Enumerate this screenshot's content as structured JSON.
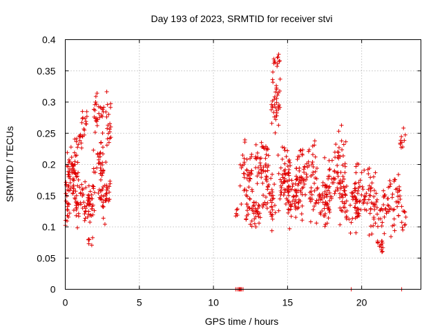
{
  "chart_data": {
    "type": "scatter",
    "title": "Day 193 of 2023, SRMTID for receiver stvi",
    "xlabel": "GPS time / hours",
    "ylabel": "SRMTID / TECUs",
    "xlim": [
      0,
      24
    ],
    "ylim": [
      0,
      0.4
    ],
    "grid": true,
    "marker": "+",
    "color": "#e00000",
    "x_ticks": [
      0,
      5,
      10,
      15,
      20
    ],
    "x_tick_labels": [
      "0",
      "5",
      "10",
      "15",
      "20"
    ],
    "y_ticks": [
      0,
      0.05,
      0.1,
      0.15,
      0.2,
      0.25,
      0.3,
      0.35,
      0.4
    ],
    "y_tick_labels": [
      "0",
      "0.05",
      "0.1",
      "0.15",
      "0.2",
      "0.25",
      "0.3",
      "0.35",
      "0.4"
    ],
    "series": [
      {
        "name": "stvi",
        "clusters": [
          {
            "x_range": [
              0.0,
              0.3
            ],
            "y_center": 0.14,
            "y_spread": 0.03,
            "count": 22
          },
          {
            "x_range": [
              0.1,
              0.7
            ],
            "y_center": 0.195,
            "y_spread": 0.025,
            "count": 40
          },
          {
            "x_range": [
              0.5,
              1.2
            ],
            "y_center": 0.15,
            "y_spread": 0.04,
            "count": 45
          },
          {
            "x_range": [
              0.6,
              1.3
            ],
            "y_center": 0.24,
            "y_spread": 0.025,
            "count": 18
          },
          {
            "x_range": [
              1.2,
              2.0
            ],
            "y_center": 0.14,
            "y_spread": 0.035,
            "count": 45
          },
          {
            "x_range": [
              1.1,
              1.5
            ],
            "y_center": 0.28,
            "y_spread": 0.025,
            "count": 10
          },
          {
            "x_range": [
              1.5,
              1.9
            ],
            "y_center": 0.08,
            "y_spread": 0.015,
            "count": 6
          },
          {
            "x_range": [
              1.9,
              2.6
            ],
            "y_center": 0.285,
            "y_spread": 0.025,
            "count": 25
          },
          {
            "x_range": [
              1.9,
              2.6
            ],
            "y_center": 0.2,
            "y_spread": 0.04,
            "count": 35
          },
          {
            "x_range": [
              2.3,
              2.8
            ],
            "y_center": 0.15,
            "y_spread": 0.035,
            "count": 25
          },
          {
            "x_range": [
              2.7,
              3.1
            ],
            "y_center": 0.26,
            "y_spread": 0.04,
            "count": 20
          },
          {
            "x_range": [
              2.7,
              3.1
            ],
            "y_center": 0.16,
            "y_spread": 0.02,
            "count": 12
          },
          {
            "x_range": [
              11.5,
              11.9
            ],
            "y_center": 0.13,
            "y_spread": 0.012,
            "count": 6
          },
          {
            "x_range": [
              11.8,
              12.6
            ],
            "y_center": 0.19,
            "y_spread": 0.03,
            "count": 35
          },
          {
            "x_range": [
              12.2,
              13.2
            ],
            "y_center": 0.125,
            "y_spread": 0.03,
            "count": 45
          },
          {
            "x_range": [
              12.8,
              13.8
            ],
            "y_center": 0.205,
            "y_spread": 0.03,
            "count": 45
          },
          {
            "x_range": [
              13.3,
              14.2
            ],
            "y_center": 0.15,
            "y_spread": 0.04,
            "count": 40
          },
          {
            "x_range": [
              13.9,
              14.5
            ],
            "y_center": 0.3,
            "y_spread": 0.04,
            "count": 35
          },
          {
            "x_range": [
              14.0,
              14.5
            ],
            "y_center": 0.365,
            "y_spread": 0.015,
            "count": 12
          },
          {
            "x_range": [
              14.3,
              15.2
            ],
            "y_center": 0.18,
            "y_spread": 0.04,
            "count": 55
          },
          {
            "x_range": [
              15.0,
              16.0
            ],
            "y_center": 0.15,
            "y_spread": 0.035,
            "count": 60
          },
          {
            "x_range": [
              15.5,
              17.0
            ],
            "y_center": 0.19,
            "y_spread": 0.04,
            "count": 55
          },
          {
            "x_range": [
              16.5,
              18.0
            ],
            "y_center": 0.14,
            "y_spread": 0.03,
            "count": 60
          },
          {
            "x_range": [
              17.5,
              19.0
            ],
            "y_center": 0.17,
            "y_spread": 0.04,
            "count": 60
          },
          {
            "x_range": [
              18.0,
              19.0
            ],
            "y_center": 0.23,
            "y_spread": 0.025,
            "count": 15
          },
          {
            "x_range": [
              18.5,
              20.0
            ],
            "y_center": 0.135,
            "y_spread": 0.035,
            "count": 55
          },
          {
            "x_range": [
              19.5,
              21.0
            ],
            "y_center": 0.16,
            "y_spread": 0.04,
            "count": 55
          },
          {
            "x_range": [
              20.5,
              21.8
            ],
            "y_center": 0.12,
            "y_spread": 0.035,
            "count": 45
          },
          {
            "x_range": [
              21.0,
              21.6
            ],
            "y_center": 0.07,
            "y_spread": 0.015,
            "count": 12
          },
          {
            "x_range": [
              21.8,
              22.6
            ],
            "y_center": 0.15,
            "y_spread": 0.045,
            "count": 35
          },
          {
            "x_range": [
              22.6,
              23.0
            ],
            "y_center": 0.25,
            "y_spread": 0.025,
            "count": 10
          },
          {
            "x_range": [
              22.6,
              23.0
            ],
            "y_center": 0.11,
            "y_spread": 0.02,
            "count": 10
          }
        ],
        "zero_points": [
          11.5,
          11.6,
          11.7,
          11.75,
          11.8,
          11.85,
          11.9,
          12.0,
          19.3,
          22.7
        ]
      }
    ]
  }
}
